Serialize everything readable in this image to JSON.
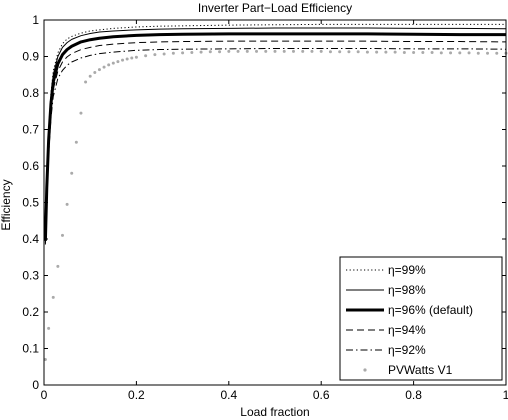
{
  "chart_data": {
    "type": "line",
    "title": "Inverter Part−Load Efficiency",
    "xlabel": "Load fraction",
    "ylabel": "Efficiency",
    "xlim": [
      0,
      1
    ],
    "ylim": [
      0,
      1
    ],
    "xticks": [
      0,
      0.2,
      0.4,
      0.6,
      0.8,
      1
    ],
    "xtick_labels": [
      "0",
      "0.2",
      "0.4",
      "0.6",
      "0.8",
      "1"
    ],
    "yticks": [
      0,
      0.1,
      0.2,
      0.3,
      0.4,
      0.5,
      0.6,
      0.7,
      0.8,
      0.9,
      1
    ],
    "ytick_labels": [
      "0",
      "0.1",
      "0.2",
      "0.3",
      "0.4",
      "0.5",
      "0.6",
      "0.7",
      "0.8",
      "0.9",
      "1"
    ],
    "grid": false,
    "legend_position": "bottom-right",
    "series": [
      {
        "name": "η=99%",
        "style": "dotted",
        "color": "#000000",
        "x": [
          0.003,
          0.006,
          0.01,
          0.015,
          0.02,
          0.03,
          0.04,
          0.05,
          0.06,
          0.08,
          0.1,
          0.12,
          0.15,
          0.2,
          0.25,
          0.3,
          0.4,
          0.5,
          0.6,
          0.7,
          0.8,
          0.9,
          1.0
        ],
        "y": [
          0.4,
          0.56,
          0.7,
          0.8,
          0.86,
          0.91,
          0.935,
          0.948,
          0.955,
          0.964,
          0.97,
          0.973,
          0.977,
          0.981,
          0.983,
          0.984,
          0.986,
          0.987,
          0.988,
          0.988,
          0.988,
          0.988,
          0.988
        ]
      },
      {
        "name": "η=98%",
        "style": "solid",
        "color": "#000000",
        "x": [
          0.003,
          0.006,
          0.01,
          0.015,
          0.02,
          0.03,
          0.04,
          0.05,
          0.06,
          0.08,
          0.1,
          0.12,
          0.15,
          0.2,
          0.25,
          0.3,
          0.4,
          0.5,
          0.6,
          0.7,
          0.8,
          0.9,
          1.0
        ],
        "y": [
          0.4,
          0.55,
          0.69,
          0.79,
          0.85,
          0.9,
          0.925,
          0.938,
          0.947,
          0.957,
          0.963,
          0.967,
          0.97,
          0.973,
          0.975,
          0.976,
          0.977,
          0.978,
          0.978,
          0.978,
          0.977,
          0.977,
          0.976
        ]
      },
      {
        "name": "η=96% (default)",
        "style": "thick",
        "color": "#000000",
        "x": [
          0.003,
          0.006,
          0.01,
          0.015,
          0.02,
          0.03,
          0.04,
          0.05,
          0.06,
          0.08,
          0.1,
          0.12,
          0.15,
          0.2,
          0.25,
          0.3,
          0.4,
          0.5,
          0.6,
          0.7,
          0.8,
          0.9,
          1.0
        ],
        "y": [
          0.395,
          0.54,
          0.67,
          0.77,
          0.83,
          0.88,
          0.905,
          0.919,
          0.928,
          0.94,
          0.946,
          0.95,
          0.954,
          0.958,
          0.96,
          0.961,
          0.962,
          0.962,
          0.962,
          0.962,
          0.961,
          0.96,
          0.96
        ]
      },
      {
        "name": "η=94%",
        "style": "dashed",
        "color": "#000000",
        "x": [
          0.003,
          0.006,
          0.01,
          0.015,
          0.02,
          0.03,
          0.04,
          0.05,
          0.06,
          0.08,
          0.1,
          0.12,
          0.15,
          0.2,
          0.25,
          0.3,
          0.4,
          0.5,
          0.6,
          0.7,
          0.8,
          0.9,
          1.0
        ],
        "y": [
          0.39,
          0.53,
          0.65,
          0.75,
          0.81,
          0.86,
          0.885,
          0.899,
          0.908,
          0.919,
          0.925,
          0.93,
          0.934,
          0.938,
          0.94,
          0.941,
          0.942,
          0.942,
          0.942,
          0.942,
          0.941,
          0.941,
          0.94
        ]
      },
      {
        "name": "η=92%",
        "style": "dashdot",
        "color": "#000000",
        "x": [
          0.003,
          0.006,
          0.01,
          0.015,
          0.02,
          0.03,
          0.04,
          0.05,
          0.06,
          0.08,
          0.1,
          0.12,
          0.15,
          0.2,
          0.25,
          0.3,
          0.4,
          0.5,
          0.6,
          0.7,
          0.8,
          0.9,
          1.0
        ],
        "y": [
          0.385,
          0.52,
          0.63,
          0.73,
          0.79,
          0.84,
          0.862,
          0.876,
          0.885,
          0.896,
          0.903,
          0.908,
          0.912,
          0.917,
          0.919,
          0.92,
          0.921,
          0.922,
          0.922,
          0.922,
          0.921,
          0.921,
          0.92
        ]
      },
      {
        "name": "PVWatts V1",
        "style": "markers",
        "color": "#aaaaaa",
        "x": [
          0.003,
          0.01,
          0.02,
          0.03,
          0.04,
          0.05,
          0.06,
          0.07,
          0.08,
          0.09,
          0.1,
          0.11,
          0.12,
          0.13,
          0.14,
          0.15,
          0.16,
          0.17,
          0.18,
          0.19,
          0.2,
          0.22,
          0.24,
          0.26,
          0.28,
          0.3,
          0.32,
          0.34,
          0.36,
          0.38,
          0.4,
          0.42,
          0.44,
          0.46,
          0.48,
          0.5,
          0.52,
          0.54,
          0.56,
          0.58,
          0.6,
          0.62,
          0.64,
          0.66,
          0.68,
          0.7,
          0.72,
          0.74,
          0.76,
          0.78,
          0.8,
          0.82,
          0.84,
          0.86,
          0.88,
          0.9,
          0.92,
          0.94,
          0.96,
          0.98,
          1.0
        ],
        "y": [
          0.07,
          0.155,
          0.24,
          0.325,
          0.41,
          0.495,
          0.58,
          0.665,
          0.745,
          0.83,
          0.846,
          0.856,
          0.864,
          0.871,
          0.877,
          0.882,
          0.886,
          0.89,
          0.893,
          0.896,
          0.898,
          0.902,
          0.905,
          0.907,
          0.909,
          0.91,
          0.911,
          0.912,
          0.913,
          0.913,
          0.914,
          0.914,
          0.914,
          0.914,
          0.914,
          0.914,
          0.914,
          0.914,
          0.914,
          0.914,
          0.914,
          0.913,
          0.913,
          0.913,
          0.913,
          0.912,
          0.912,
          0.912,
          0.912,
          0.911,
          0.911,
          0.911,
          0.911,
          0.91,
          0.91,
          0.91,
          0.91,
          0.909,
          0.909,
          0.909,
          0.909
        ]
      }
    ]
  }
}
